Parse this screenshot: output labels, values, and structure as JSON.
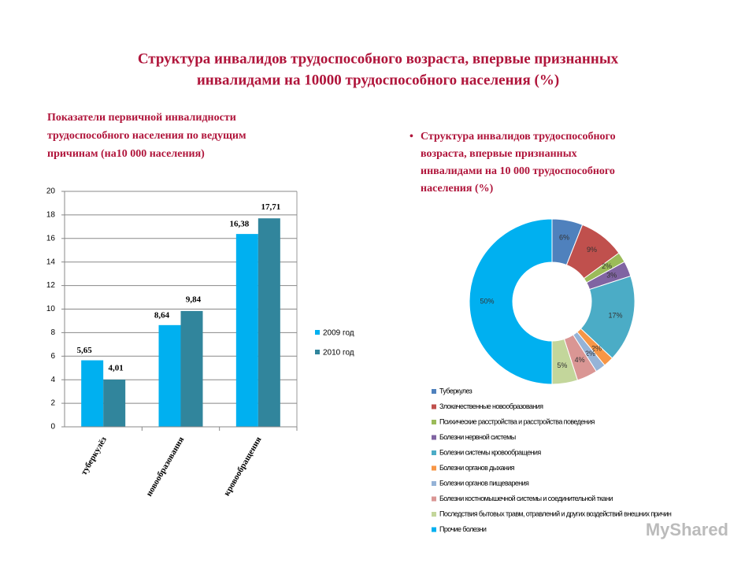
{
  "title": [
    "Структура инвалидов трудоспособного возраста, впервые признанных",
    "инвалидами на 10000 трудоспособного населения (%)"
  ],
  "watermark": "MyShared",
  "chart_data": [
    {
      "type": "bar",
      "title": [
        "Показатели первичной инвалидности",
        "трудоспособного населения по ведущим",
        "причинам (на10 000 населения)"
      ],
      "categories": [
        "туберкулёз",
        "новообразования",
        "кровообращения"
      ],
      "series": [
        {
          "name": "2009 год",
          "color": "#00b0f0",
          "values": [
            5.65,
            8.64,
            16.38
          ],
          "value_labels": [
            "5,65",
            "8,64",
            "16,38"
          ]
        },
        {
          "name": "2010 год",
          "color": "#31859c",
          "values": [
            4.01,
            9.84,
            17.71
          ],
          "value_labels": [
            "4,01",
            "9,84",
            "17,71"
          ]
        }
      ],
      "ylim": [
        0,
        20
      ],
      "yticks": [
        0,
        2,
        4,
        6,
        8,
        10,
        12,
        14,
        16,
        18,
        20
      ]
    },
    {
      "type": "pie",
      "title": [
        "Структура инвалидов трудоспособного",
        "возраста, впервые признанных",
        "инвалидами на 10 000 трудоспособного",
        "населения (%)"
      ],
      "categories": [
        "Туберкулез",
        "Злокачественные новообразования",
        "Психические расстройства и расстройства поведения",
        "Болезни нервной системы",
        "Болезни системы кровообращения",
        "Болезни органов дыхания",
        "Болезни органов пищеварения",
        "Болезни костномышечной системы и соединительной ткани",
        "Последствия бытовых травм, отравлений и других воздействий внешних причин",
        "Прочие болезни"
      ],
      "values": [
        6,
        9,
        2,
        3,
        17,
        2,
        2,
        4,
        5,
        50
      ],
      "value_labels": [
        "6%",
        "9%",
        "2%",
        "3%",
        "17%",
        "2%",
        "2%",
        "4%",
        "5%",
        "50%"
      ],
      "colors": [
        "#4f81bd",
        "#c0504d",
        "#9bbb59",
        "#8064a2",
        "#4bacc6",
        "#f79646",
        "#95b3d7",
        "#da9694",
        "#c3d69b",
        "#00b0f0"
      ]
    }
  ]
}
